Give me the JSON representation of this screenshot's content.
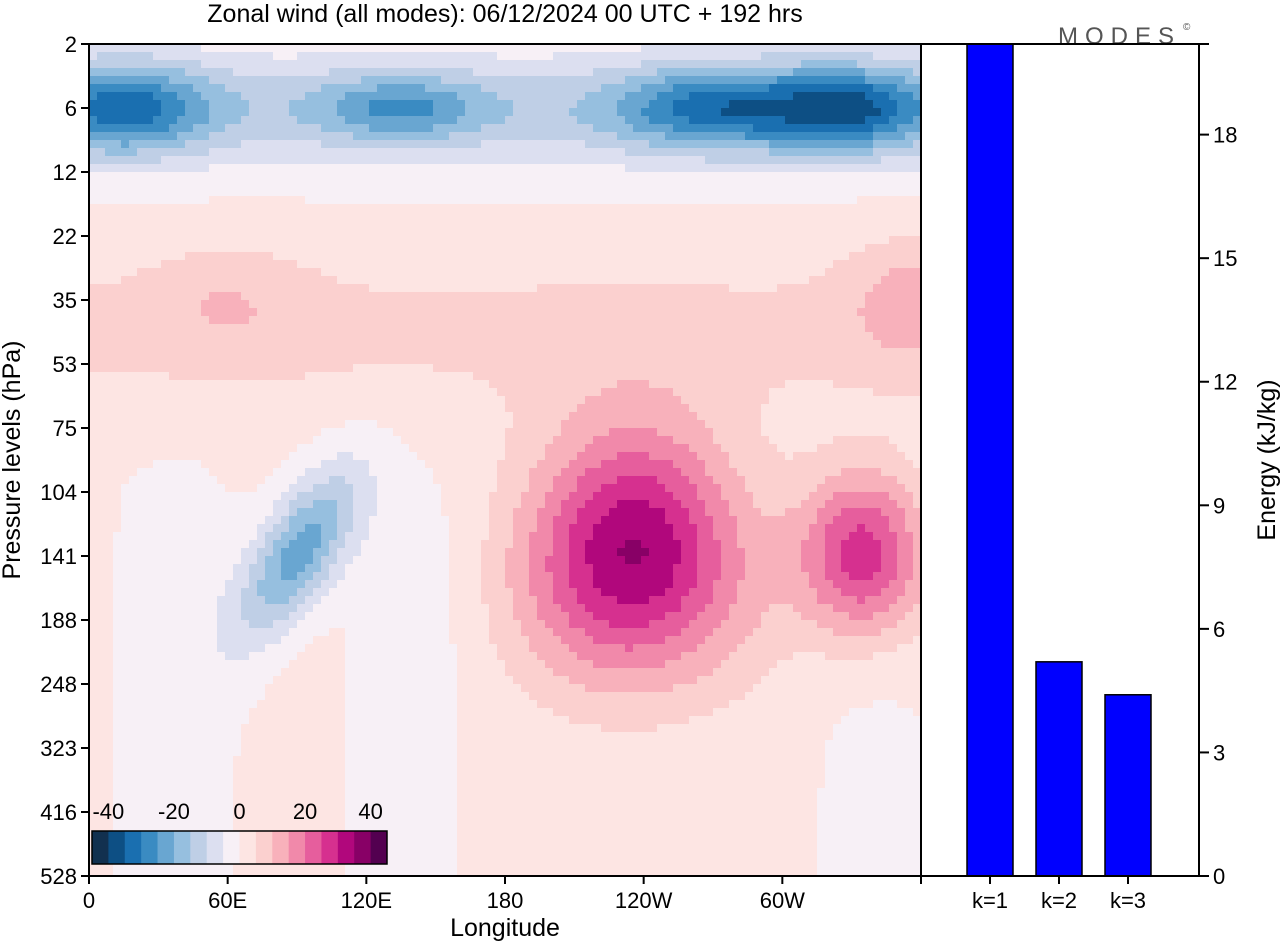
{
  "colors": {
    "bar_fill": "#0000ff",
    "logo_text": "#555555",
    "colorbar": [
      "#12304f",
      "#0d4f84",
      "#1a6fb0",
      "#3a8bc2",
      "#69a6d1",
      "#96bfdf",
      "#bfcfe6",
      "#dcdff0",
      "#f7f0f6",
      "#fde5e3",
      "#fbd0cf",
      "#f8b1bb",
      "#f189aa",
      "#e65e9d",
      "#d6308f",
      "#b1077c",
      "#880066",
      "#530050"
    ]
  },
  "chart_data": [
    {
      "type": "heatmap",
      "title": "Zonal wind (all modes):  06/12/2024  00 UTC  + 192 hrs",
      "xlabel": "Longitude",
      "ylabel": "Pressure levels (hPa)",
      "x_ticks": [
        "0",
        "60E",
        "120E",
        "180",
        "120W",
        "60W"
      ],
      "y_ticks": [
        "2",
        "6",
        "12",
        "22",
        "35",
        "53",
        "75",
        "104",
        "141",
        "188",
        "248",
        "323",
        "416",
        "528"
      ],
      "colorbar": {
        "ticks": [
          "-40",
          "-20",
          "0",
          "20",
          "40"
        ],
        "range": [
          -45,
          45
        ],
        "levels": 18
      },
      "features": [
        {
          "lon": 15,
          "p": 6,
          "value": -30
        },
        {
          "lon": 135,
          "p": 6,
          "value": -20
        },
        {
          "lon": 270,
          "p": 6,
          "value": -28
        },
        {
          "lon": 330,
          "p": 6,
          "value": -32
        },
        {
          "lon": 60,
          "p": 35,
          "value": 5
        },
        {
          "lon": 355,
          "p": 35,
          "value": 8
        },
        {
          "lon": 90,
          "p": 141,
          "value": -25
        },
        {
          "lon": 236,
          "p": 141,
          "value": 38
        },
        {
          "lon": 335,
          "p": 141,
          "value": 30
        }
      ]
    },
    {
      "type": "bar",
      "categories": [
        "k=1",
        "k=2",
        "k=3"
      ],
      "values": [
        21.0,
        5.2,
        4.4
      ],
      "ylabel": "Energy (kJ/kg)",
      "ylim": [
        0,
        20.2
      ],
      "y_ticks": [
        "0",
        "3",
        "6",
        "9",
        "12",
        "15",
        "18"
      ]
    }
  ],
  "logo": {
    "text": "MODES",
    "mark": "©"
  }
}
